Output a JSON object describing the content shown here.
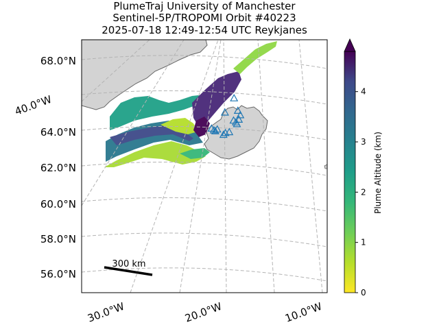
{
  "title": {
    "line1": "PlumeTraj    University of Manchester",
    "line2": "Sentinel-5P/TROPOMI Orbit #40223",
    "line3": "2025-07-18   12:49-12:54 UTC   Reykjanes"
  },
  "colors": {
    "land": "#d3d3d3",
    "coast": "#666666",
    "grid": "#b3b3b3",
    "station": "#1f77b4",
    "scalebar": "#000000"
  },
  "chart_data": {
    "type": "map",
    "projection": "lambert-conformal-like",
    "lat_ticks": [
      "68.0°N",
      "64.0°N",
      "62.0°N",
      "60.0°N",
      "58.0°N",
      "56.0°N"
    ],
    "lon_ticks": [
      "40.0°W",
      "30.0°W",
      "20.0°W",
      "10.0°W"
    ],
    "grid": true,
    "extent": {
      "lon": [
        -40,
        -8
      ],
      "lat": [
        55,
        69
      ]
    },
    "colorbar": {
      "label": "Plume Altitude (km)",
      "colormap": "viridis",
      "range": [
        0,
        4.8
      ],
      "ticks": [
        "0",
        "1",
        "2",
        "3",
        "4"
      ],
      "extend": "max"
    },
    "scale_bar": {
      "label": "300 km"
    },
    "stations": [
      {
        "lon": -20.3,
        "lat": 65.0
      },
      {
        "lon": -18.4,
        "lat": 65.8
      },
      {
        "lon": -17.6,
        "lat": 65.1
      },
      {
        "lon": -17.1,
        "lat": 64.85
      },
      {
        "lon": -17.4,
        "lat": 64.6
      },
      {
        "lon": -18.0,
        "lat": 64.45
      },
      {
        "lon": -18.5,
        "lat": 64.55
      },
      {
        "lon": -17.8,
        "lat": 64.35
      },
      {
        "lon": -19.4,
        "lat": 63.9
      },
      {
        "lon": -20.2,
        "lat": 63.85
      },
      {
        "lon": -20.6,
        "lat": 63.75
      },
      {
        "lon": -21.9,
        "lat": 64.05
      },
      {
        "lon": -22.6,
        "lat": 64.0
      },
      {
        "lon": -23.1,
        "lat": 64.1
      },
      {
        "lon": -22.3,
        "lat": 63.95
      }
    ]
  }
}
